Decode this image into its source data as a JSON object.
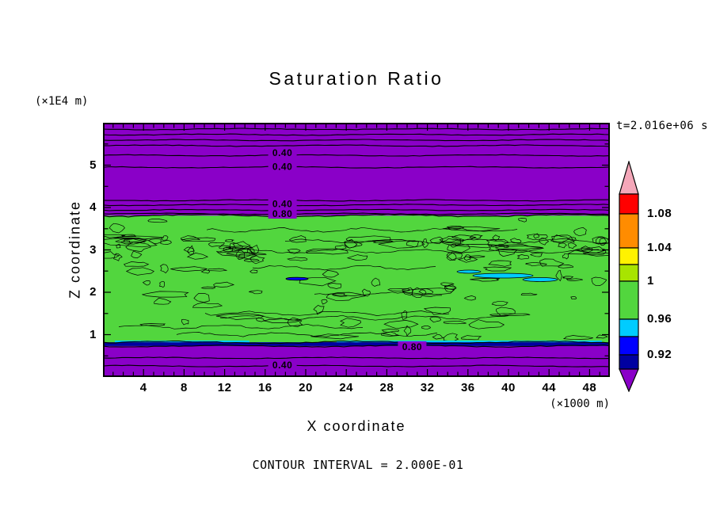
{
  "chart_data": {
    "type": "contour",
    "title": "Saturation Ratio",
    "xlabel": "X coordinate",
    "ylabel": "Z coordinate",
    "x_unit_label": "(×1000 m)",
    "y_unit_label": "(×1E4 m)",
    "time_label": "t=2.016e+06 s",
    "contour_interval_label": "CONTOUR INTERVAL = 2.000E-01",
    "contour_interval": 0.2,
    "x_range": [
      0,
      50
    ],
    "y_range": [
      0,
      6
    ],
    "x_ticks": [
      4,
      8,
      12,
      16,
      20,
      24,
      28,
      32,
      36,
      40,
      44,
      48
    ],
    "y_ticks": [
      1,
      2,
      3,
      4,
      5
    ],
    "colors": {
      "field_green": "#52D63E",
      "band_purple": "#8A00C8",
      "strip_navy": "#0000A0",
      "patch_cyan": "#00CCFF",
      "patch_blue": "#0000FF",
      "frame": "#000000",
      "text": "#000000"
    },
    "colorbar": {
      "tick_labels": [
        "1.08",
        "1.04",
        "1",
        "0.96",
        "0.92"
      ],
      "segment_colors": [
        "#FF0000",
        "#FF8C00",
        "#FFF200",
        "#A8E400",
        "#52D63E",
        "#00CCFF",
        "#0000FF",
        "#0000A0"
      ],
      "over_color": "#F4A7B9",
      "under_color": "#8A00C8"
    },
    "bands": {
      "upper_purple_z": [
        3.81,
        6.0
      ],
      "green_z": [
        0.82,
        3.81
      ],
      "navy_strip_z": [
        0.73,
        0.82
      ],
      "lower_purple_z": [
        0.0,
        0.73
      ]
    },
    "contour_line_z_upper": [
      5.85,
      5.72,
      5.59,
      5.46,
      5.23,
      4.95,
      4.17,
      4.06,
      3.94,
      3.85
    ],
    "contour_line_z_lower": [
      0.45,
      0.26
    ],
    "contour_labels": [
      {
        "text": "0.40",
        "x": 17.7,
        "z": 5.29
      },
      {
        "text": "0.40",
        "x": 17.7,
        "z": 4.97
      },
      {
        "text": "0.40",
        "x": 17.7,
        "z": 4.09
      },
      {
        "text": "0.80",
        "x": 17.7,
        "z": 3.85
      },
      {
        "text": "0.80",
        "x": 30.5,
        "z": 0.71
      },
      {
        "text": "0.40",
        "x": 17.7,
        "z": 0.28
      }
    ]
  }
}
